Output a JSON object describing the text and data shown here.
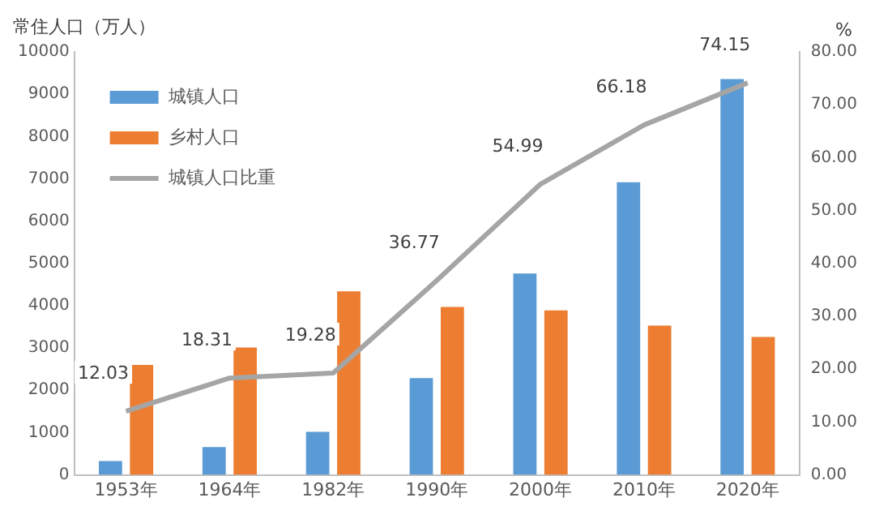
{
  "chart_data": {
    "type": "bar",
    "ylabel": "常住人口（万人）",
    "y2label": "%",
    "categories": [
      "1953年",
      "1964年",
      "1982年",
      "1990年",
      "2000年",
      "2010年",
      "2020年"
    ],
    "series": [
      {
        "name": "城镇人口",
        "color": "#5b9bd5",
        "values": [
          330,
          660,
          1020,
          2290,
          4760,
          6920,
          9360
        ]
      },
      {
        "name": "乡村人口",
        "color": "#ed7d31",
        "values": [
          2600,
          3010,
          4340,
          3970,
          3890,
          3530,
          3260
        ]
      },
      {
        "name": "城镇人口比重",
        "type": "line",
        "axis": "y2",
        "color": "#a5a5a5",
        "values": [
          12.03,
          18.31,
          19.28,
          36.77,
          54.99,
          66.18,
          74.15
        ],
        "value_labels": [
          "12.03",
          "18.31",
          "19.28",
          "36.77",
          "54.99",
          "66.18",
          "74.15"
        ]
      }
    ],
    "ylim": [
      0,
      10000
    ],
    "yticks": [
      0,
      1000,
      2000,
      3000,
      4000,
      5000,
      6000,
      7000,
      8000,
      9000,
      10000
    ],
    "y2lim": [
      0,
      80
    ],
    "y2ticks": [
      {
        "value": 0,
        "label": "0.00"
      },
      {
        "value": 10,
        "label": "10.00"
      },
      {
        "value": 20,
        "label": "20.00"
      },
      {
        "value": 30,
        "label": "30.00"
      },
      {
        "value": 40,
        "label": "40.00"
      },
      {
        "value": 50,
        "label": "50.00"
      },
      {
        "value": 60,
        "label": "60.00"
      },
      {
        "value": 70,
        "label": "70.00"
      },
      {
        "value": 80,
        "label": "80.00"
      }
    ],
    "grid": false,
    "legend": "top left",
    "marker": "none"
  }
}
